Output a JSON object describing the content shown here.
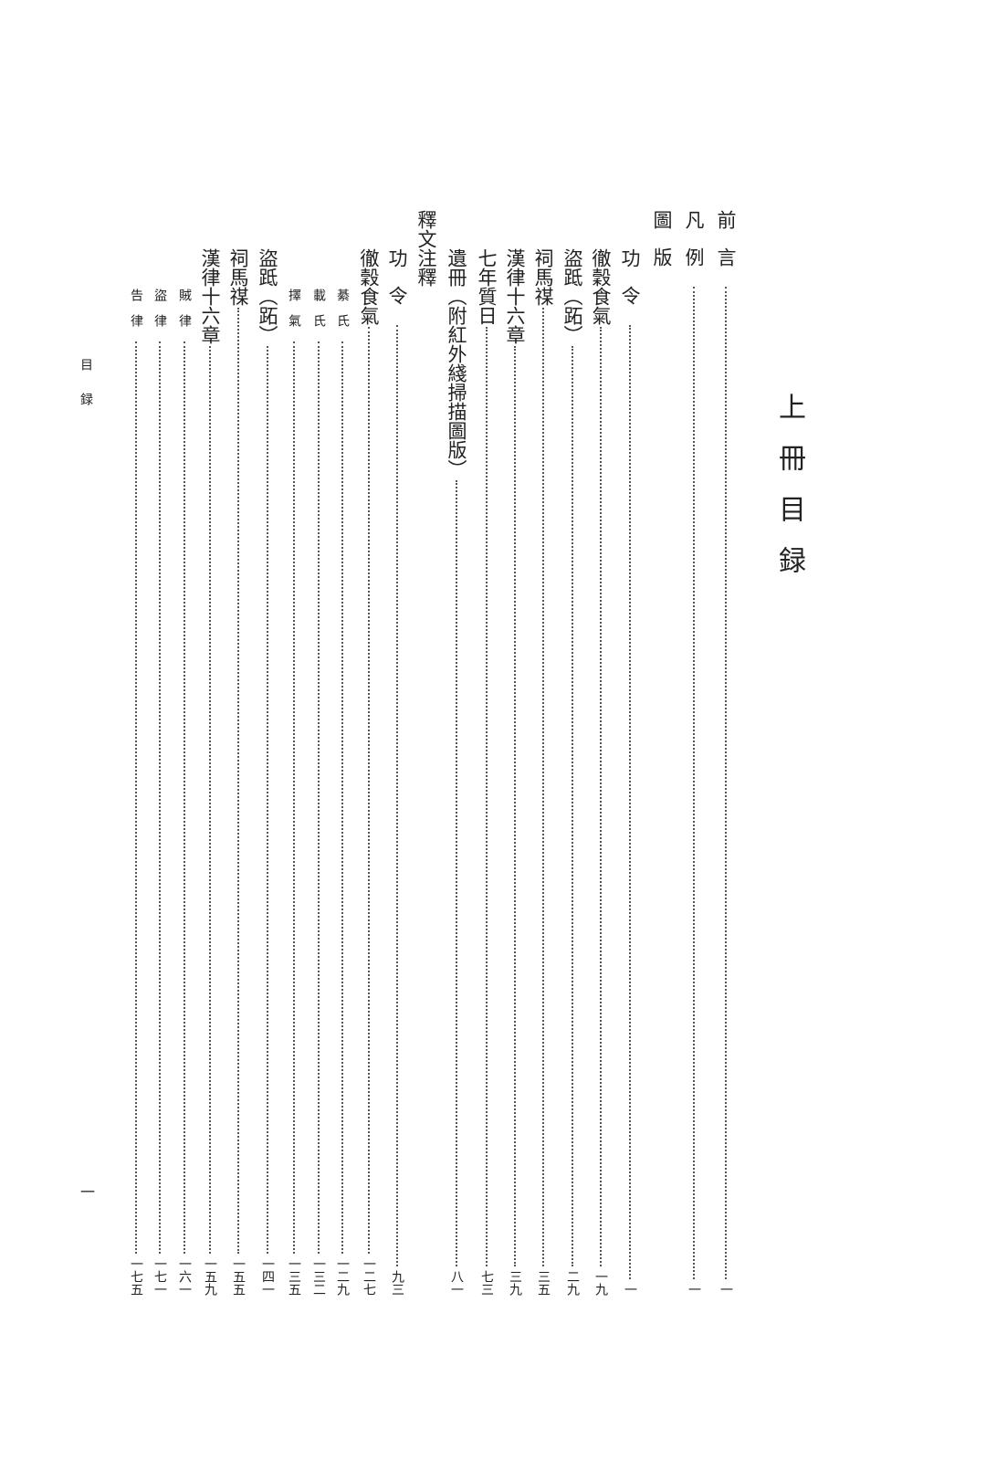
{
  "title": "上冊目録",
  "running_head": "目録",
  "folio": "一",
  "entries": [
    {
      "label": "前言",
      "page": "一",
      "level": 1
    },
    {
      "label": "凡例",
      "page": "一",
      "level": 1
    },
    {
      "label": "圖版",
      "page": "",
      "level": 1
    },
    {
      "label": "功令",
      "page": "一",
      "level": 2
    },
    {
      "label": "徹穀食氣",
      "page": "一九",
      "level": 2
    },
    {
      "label": "盜䟡（跖）",
      "page": "二九",
      "level": 2
    },
    {
      "label": "祠馬禖",
      "page": "三五",
      "level": 2
    },
    {
      "label": "漢律十六章",
      "page": "三九",
      "level": 2
    },
    {
      "label": "七年質日",
      "page": "七三",
      "level": 2
    },
    {
      "label": "遺冊（附紅外綫掃描圖版）",
      "page": "八一",
      "level": 2
    },
    {
      "label": "釋文注釋",
      "page": "",
      "level": 1
    },
    {
      "label": "功令",
      "page": "九三",
      "level": 2
    },
    {
      "label": "徹穀食氣",
      "page": "一二七",
      "level": 2
    },
    {
      "label": "綦氏",
      "page": "一二九",
      "level": 3
    },
    {
      "label": "載氏",
      "page": "一三二",
      "level": 3
    },
    {
      "label": "擇氣",
      "page": "一三五",
      "level": 3
    },
    {
      "label": "盜䟡（跖）",
      "page": "一四一",
      "level": 2
    },
    {
      "label": "祠馬禖",
      "page": "一五五",
      "level": 2
    },
    {
      "label": "漢律十六章",
      "page": "一五九",
      "level": 2
    },
    {
      "label": "賊律",
      "page": "一六一",
      "level": 3
    },
    {
      "label": "盜律",
      "page": "一七一",
      "level": 3
    },
    {
      "label": "告律",
      "page": "一七五",
      "level": 3
    }
  ]
}
